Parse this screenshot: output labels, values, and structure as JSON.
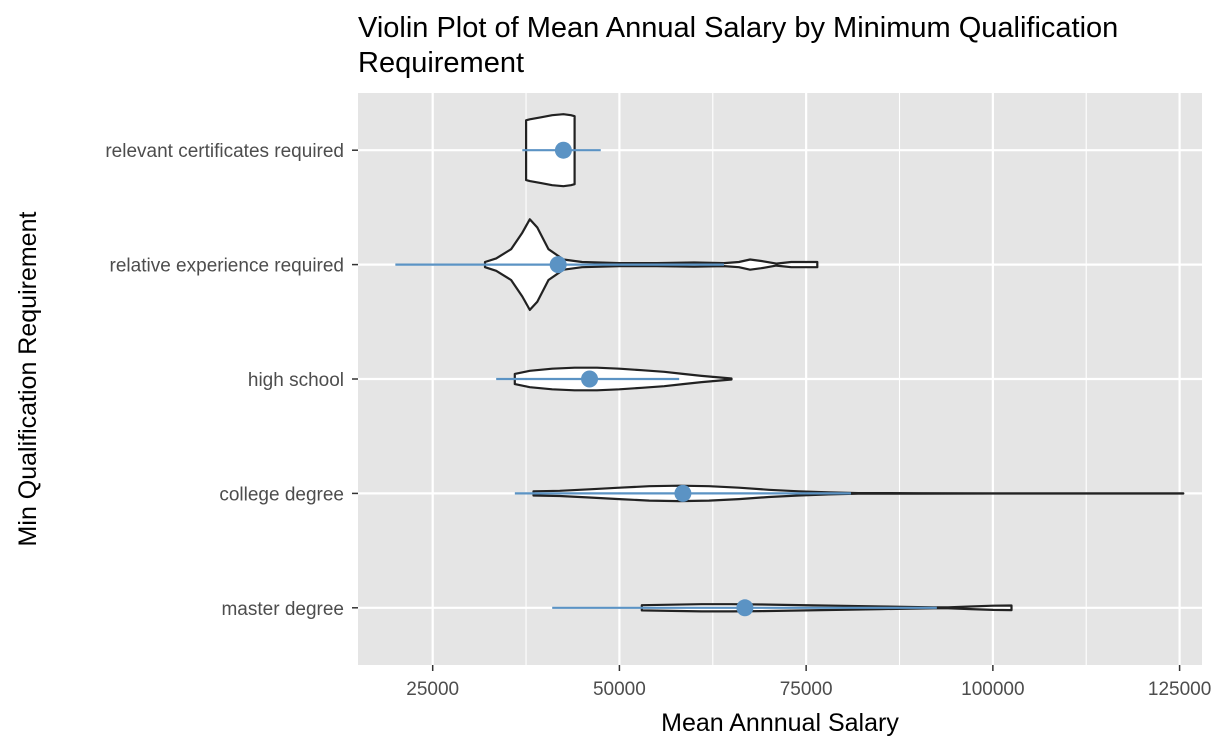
{
  "chart_data": {
    "type": "violin",
    "orientation": "horizontal",
    "title_lines": [
      "Violin Plot of Mean Annual Salary by Minimum Qualification",
      "Requirement"
    ],
    "xlabel": "Mean Annnual Salary",
    "ylabel": "Min Qualification Requirement",
    "xlim": [
      15000,
      128000
    ],
    "x_ticks": [
      25000,
      50000,
      75000,
      100000,
      125000
    ],
    "x_tick_labels": [
      "25000",
      "50000",
      "75000",
      "100000",
      "125000"
    ],
    "grid": true,
    "legend": "none",
    "colors": {
      "panel": "#e5e5e5",
      "grid": "#ffffff",
      "violin_fill": "#ffffff",
      "violin_stroke": "#222222",
      "summary": "#5b93c4",
      "tick_label": "#4d4d4d"
    },
    "categories": [
      {
        "label": "relevant certificates required",
        "mean": 42500,
        "interval": [
          37000,
          47500
        ],
        "violin": {
          "min": 37500,
          "max": 44000,
          "profile": [
            [
              37500,
              0.58
            ],
            [
              38000,
              0.6
            ],
            [
              39500,
              0.64
            ],
            [
              41000,
              0.68
            ],
            [
              42500,
              0.7
            ],
            [
              43500,
              0.68
            ],
            [
              44000,
              0.66
            ]
          ]
        }
      },
      {
        "label": "relative experience required",
        "mean": 41800,
        "interval": [
          20000,
          64000
        ],
        "violin": {
          "min": 32000,
          "max": 76500,
          "profile": [
            [
              32000,
              0.05
            ],
            [
              33500,
              0.12
            ],
            [
              35500,
              0.3
            ],
            [
              37000,
              0.62
            ],
            [
              38000,
              0.88
            ],
            [
              39000,
              0.72
            ],
            [
              40500,
              0.3
            ],
            [
              42500,
              0.1
            ],
            [
              45000,
              0.05
            ],
            [
              50000,
              0.03
            ],
            [
              55000,
              0.03
            ],
            [
              60000,
              0.04
            ],
            [
              64000,
              0.03
            ],
            [
              66000,
              0.05
            ],
            [
              67500,
              0.1
            ],
            [
              69000,
              0.07
            ],
            [
              71000,
              0.02
            ],
            [
              73000,
              0.05
            ],
            [
              75000,
              0.05
            ],
            [
              76500,
              0.05
            ]
          ]
        }
      },
      {
        "label": "high school",
        "mean": 46000,
        "interval": [
          33500,
          58000
        ],
        "violin": {
          "min": 36000,
          "max": 65000,
          "profile": [
            [
              36000,
              0.1
            ],
            [
              38000,
              0.16
            ],
            [
              41000,
              0.2
            ],
            [
              44000,
              0.22
            ],
            [
              47000,
              0.22
            ],
            [
              50000,
              0.2
            ],
            [
              53000,
              0.17
            ],
            [
              56000,
              0.14
            ],
            [
              58500,
              0.1
            ],
            [
              61000,
              0.06
            ],
            [
              63500,
              0.03
            ],
            [
              65000,
              0.01
            ]
          ]
        }
      },
      {
        "label": "college degree",
        "mean": 58500,
        "interval": [
          36000,
          81000
        ],
        "violin": {
          "min": 38500,
          "max": 125500,
          "profile": [
            [
              38500,
              0.04
            ],
            [
              42000,
              0.05
            ],
            [
              46000,
              0.08
            ],
            [
              50000,
              0.11
            ],
            [
              54000,
              0.14
            ],
            [
              58000,
              0.15
            ],
            [
              62000,
              0.14
            ],
            [
              66000,
              0.11
            ],
            [
              70000,
              0.07
            ],
            [
              74000,
              0.04
            ],
            [
              78000,
              0.02
            ],
            [
              82000,
              0.005
            ],
            [
              90000,
              0.003
            ],
            [
              100000,
              0.002
            ],
            [
              110000,
              0.002
            ],
            [
              125500,
              0.001
            ]
          ]
        }
      },
      {
        "label": "master degree",
        "mean": 66800,
        "interval": [
          41000,
          92500
        ],
        "violin": {
          "min": 53000,
          "max": 102500,
          "profile": [
            [
              53000,
              0.05
            ],
            [
              57000,
              0.06
            ],
            [
              61000,
              0.07
            ],
            [
              65000,
              0.07
            ],
            [
              69000,
              0.065
            ],
            [
              73000,
              0.055
            ],
            [
              77000,
              0.045
            ],
            [
              81000,
              0.035
            ],
            [
              85000,
              0.025
            ],
            [
              89000,
              0.015
            ],
            [
              92000,
              0.01
            ],
            [
              94000,
              0.01
            ],
            [
              97000,
              0.025
            ],
            [
              100000,
              0.04
            ],
            [
              102500,
              0.045
            ]
          ]
        }
      }
    ]
  }
}
